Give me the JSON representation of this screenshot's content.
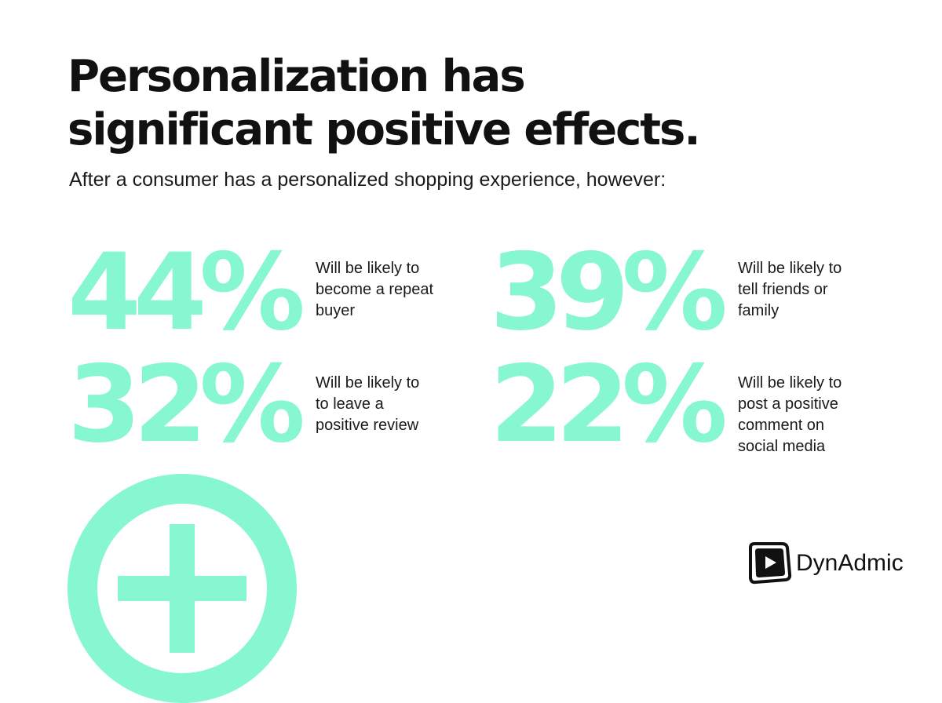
{
  "header": {
    "title": "Personalization has significant positive effects.",
    "subtitle": "After a consumer has a personalized shopping experience, however:"
  },
  "stats": [
    {
      "value": "44%",
      "description_lines": [
        "Will be likely to",
        "become a repeat",
        "buyer"
      ]
    },
    {
      "value": "39%",
      "description_lines": [
        "Will be likely to",
        "tell friends or",
        "family"
      ]
    },
    {
      "value": "32%",
      "description_lines": [
        "Will be likely to",
        "to leave a",
        "positive review"
      ]
    },
    {
      "value": "22%",
      "description_lines": [
        "Will be likely to",
        "post a positive",
        "comment on",
        "social media"
      ]
    }
  ],
  "decoration": {
    "icon": "plus-circle-icon"
  },
  "brand": {
    "name": "DynAdmic",
    "icon": "play-logo-icon"
  },
  "colors": {
    "accent": "#86f7d0",
    "text": "#111111",
    "background": "#ffffff"
  }
}
